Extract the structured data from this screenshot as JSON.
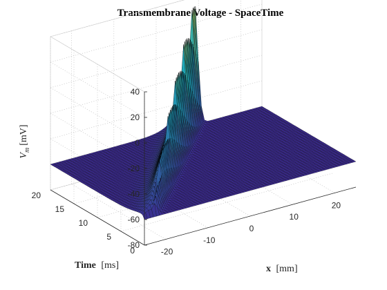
{
  "chart_data": {
    "type": "surface",
    "title": "Transmembrane Voltage - SpaceTime",
    "xlabel": {
      "name": "x",
      "unit": "[mm]"
    },
    "ylabel": {
      "name": "Time",
      "unit": "[ms]"
    },
    "zlabel": {
      "symbol": "V",
      "subscript": "m",
      "unit": "[mV]"
    },
    "xlim": [
      -25,
      25
    ],
    "ylim": [
      0,
      20
    ],
    "zlim": [
      -80,
      40
    ],
    "xticks": [
      "-20",
      "-10",
      "0",
      "10",
      "20"
    ],
    "yticks": [
      "0",
      "5",
      "10",
      "15",
      "20"
    ],
    "zticks": [
      "-80",
      "-60",
      "-40",
      "-20",
      "0",
      "20",
      "40"
    ],
    "grid": true,
    "colormap": "parula",
    "colors": {
      "low": "#3b2a8f",
      "mid": "#1fa8b8",
      "high": "#f2e636",
      "edge": "#000000"
    },
    "surface": {
      "description_values": {
        "resting_potential_mV": -60,
        "peak_potential_mV": 38,
        "wave_start": {
          "x_mm": -23,
          "t_ms": 0
        },
        "wave_end": {
          "x_mm": 9,
          "t_ms": 20
        },
        "wavefront_width_mm": 1.2,
        "wavefront_decay_mm": 2.2
      }
    }
  }
}
